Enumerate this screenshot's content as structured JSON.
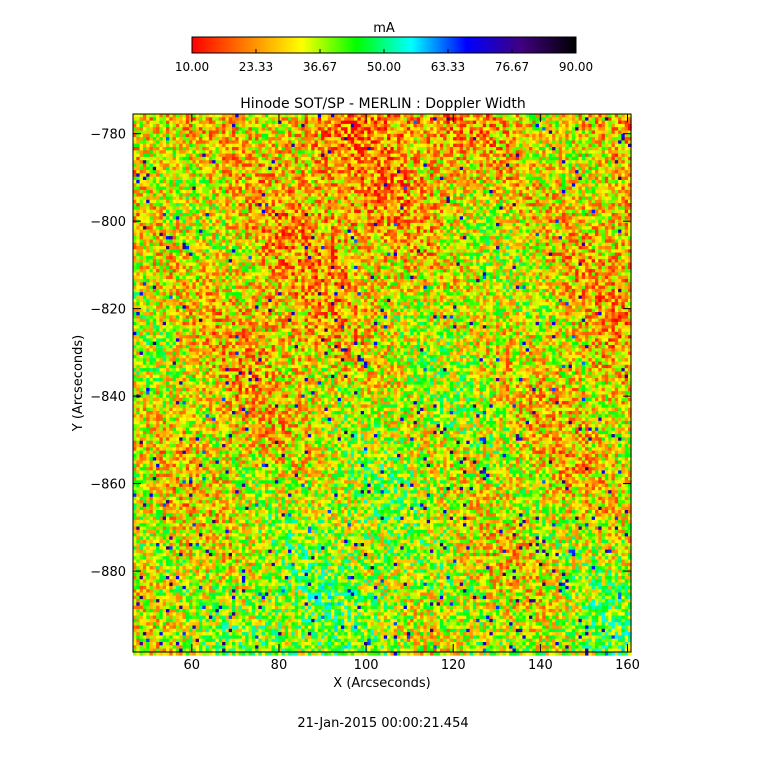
{
  "chart_data": {
    "type": "heatmap",
    "title": "Hinode SOT/SP - MERLIN : Doppler Width",
    "xlabel": "X (Arcseconds)",
    "ylabel": "Y (Arcseconds)",
    "xlim": [
      46.5,
      160.8
    ],
    "ylim": [
      -898.5,
      -775.5
    ],
    "x_ticks": [
      60,
      80,
      100,
      120,
      140,
      160
    ],
    "x_tick_labels": [
      "60",
      "80",
      "100",
      "120",
      "140",
      "160"
    ],
    "y_ticks": [
      -780,
      -800,
      -820,
      -840,
      -860,
      -880
    ],
    "y_tick_labels": [
      "-780",
      "-800",
      "-820",
      "-840",
      "-860",
      "-880"
    ],
    "colorbar": {
      "label": "mA",
      "range": [
        10.0,
        90.0
      ],
      "ticks": [
        10.0,
        23.33,
        36.67,
        50.0,
        63.33,
        76.67,
        90.0
      ],
      "tick_labels": [
        "10.00",
        "23.33",
        "36.67",
        "50.00",
        "63.33",
        "76.67",
        "90.00"
      ],
      "colors": [
        "#ff0000",
        "#ff8000",
        "#ffff00",
        "#00ff00",
        "#00ffff",
        "#0000ff",
        "#400080",
        "#000000"
      ]
    },
    "grid": false,
    "timestamp": "21-Jan-2015 00:00:21.454"
  }
}
